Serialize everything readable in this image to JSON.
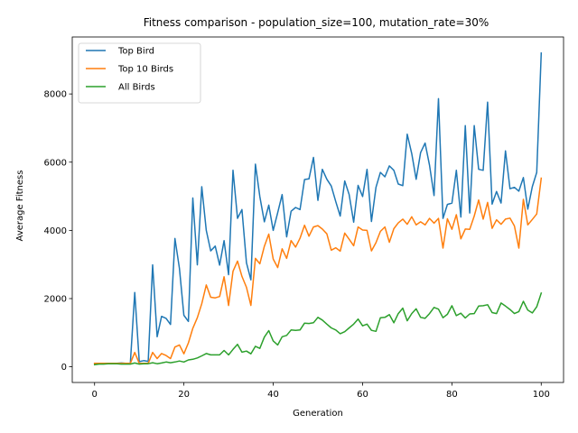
{
  "chart_data": {
    "type": "line",
    "title": "Fitness comparison - population_size=100, mutation_rate=30%",
    "xlabel": "Generation",
    "ylabel": "Average Fitness",
    "xlim": [
      -5,
      105
    ],
    "ylim": [
      -460,
      9670
    ],
    "xticks": [
      0,
      20,
      40,
      60,
      80,
      100
    ],
    "yticks": [
      0,
      2000,
      4000,
      6000,
      8000
    ],
    "grid": false,
    "legend_position": "top-left",
    "x": [
      0,
      1,
      2,
      3,
      4,
      5,
      6,
      7,
      8,
      9,
      10,
      11,
      12,
      13,
      14,
      15,
      16,
      17,
      18,
      19,
      20,
      21,
      22,
      23,
      24,
      25,
      26,
      27,
      28,
      29,
      30,
      31,
      32,
      33,
      34,
      35,
      36,
      37,
      38,
      39,
      40,
      41,
      42,
      43,
      44,
      45,
      46,
      47,
      48,
      49,
      50,
      51,
      52,
      53,
      54,
      55,
      56,
      57,
      58,
      59,
      60,
      61,
      62,
      63,
      64,
      65,
      66,
      67,
      68,
      69,
      70,
      71,
      72,
      73,
      74,
      75,
      76,
      77,
      78,
      79,
      80,
      81,
      82,
      83,
      84,
      85,
      86,
      87,
      88,
      89,
      90,
      91,
      92,
      93,
      94,
      95,
      96,
      97,
      98,
      99,
      100
    ],
    "series": [
      {
        "name": "Top Bird",
        "color": "#1f77b4",
        "values": [
          100,
          100,
          100,
          100,
          100,
          100,
          110,
          100,
          100,
          2180,
          150,
          180,
          160,
          2990,
          880,
          1480,
          1420,
          1240,
          3760,
          2880,
          1510,
          1330,
          4950,
          2990,
          5280,
          4000,
          3400,
          3540,
          2980,
          3700,
          2700,
          5760,
          4350,
          4610,
          3050,
          2550,
          5940,
          4990,
          4250,
          4740,
          4000,
          4520,
          5050,
          3810,
          4560,
          4670,
          4610,
          5490,
          5510,
          6140,
          4880,
          5790,
          5500,
          5300,
          4840,
          4420,
          5450,
          5050,
          4240,
          5320,
          4990,
          5790,
          4260,
          5260,
          5700,
          5570,
          5890,
          5760,
          5360,
          5310,
          6820,
          6250,
          5500,
          6280,
          6560,
          5910,
          5020,
          7860,
          4350,
          4760,
          4800,
          5760,
          4390,
          7070,
          4510,
          7070,
          5790,
          5760,
          7760,
          4770,
          5140,
          4800,
          6330,
          5220,
          5260,
          5150,
          5550,
          4620,
          5280,
          5700,
          9200
        ]
      },
      {
        "name": "Top 10 Birds",
        "color": "#ff7f0e",
        "values": [
          100,
          100,
          100,
          100,
          100,
          100,
          100,
          100,
          100,
          420,
          100,
          100,
          100,
          420,
          240,
          390,
          330,
          240,
          580,
          640,
          380,
          700,
          1130,
          1440,
          1850,
          2400,
          2040,
          2020,
          2060,
          2640,
          1800,
          2800,
          3100,
          2650,
          2330,
          1800,
          3180,
          3020,
          3530,
          3890,
          3160,
          2910,
          3460,
          3180,
          3700,
          3510,
          3770,
          4150,
          3830,
          4100,
          4140,
          4040,
          3900,
          3420,
          3490,
          3390,
          3920,
          3740,
          3550,
          4100,
          4010,
          4000,
          3400,
          3640,
          3970,
          4100,
          3650,
          4050,
          4220,
          4330,
          4180,
          4400,
          4160,
          4250,
          4160,
          4350,
          4210,
          4350,
          3480,
          4340,
          4030,
          4460,
          3750,
          4040,
          4030,
          4420,
          4890,
          4330,
          4820,
          4060,
          4310,
          4180,
          4330,
          4360,
          4130,
          3480,
          4910,
          4160,
          4320,
          4480,
          5530
        ]
      },
      {
        "name": "All Birds",
        "color": "#2ca02c",
        "values": [
          60,
          80,
          80,
          90,
          90,
          90,
          80,
          80,
          80,
          110,
          80,
          90,
          90,
          120,
          90,
          110,
          140,
          120,
          140,
          170,
          140,
          200,
          220,
          260,
          320,
          390,
          350,
          350,
          350,
          480,
          350,
          510,
          660,
          430,
          460,
          380,
          600,
          540,
          870,
          1060,
          760,
          640,
          880,
          920,
          1080,
          1070,
          1080,
          1280,
          1270,
          1290,
          1450,
          1370,
          1250,
          1140,
          1080,
          970,
          1030,
          1140,
          1250,
          1400,
          1200,
          1250,
          1070,
          1040,
          1440,
          1450,
          1530,
          1290,
          1560,
          1720,
          1350,
          1560,
          1700,
          1450,
          1420,
          1560,
          1740,
          1690,
          1440,
          1540,
          1790,
          1500,
          1570,
          1430,
          1550,
          1560,
          1780,
          1790,
          1820,
          1590,
          1560,
          1870,
          1780,
          1680,
          1560,
          1620,
          1920,
          1660,
          1580,
          1760,
          2160
        ]
      }
    ]
  }
}
